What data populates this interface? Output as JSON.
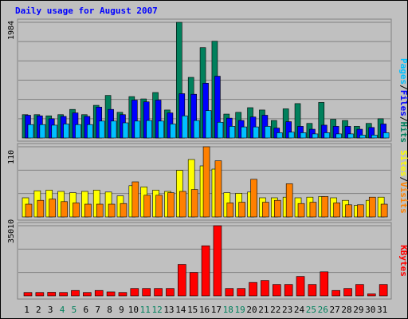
{
  "title": "Daily usage for August 2007",
  "colors": {
    "background": "#c0c0c0",
    "title": "#0000ff",
    "hits": "#00805c",
    "files": "#0000ff",
    "pages": "#00c0ff",
    "visits": "#ff8000",
    "sites": "#ffff00",
    "kbytes": "#ff0000",
    "weekend_label": "#00805c",
    "weekday_label": "#000000"
  },
  "chart_data": [
    {
      "type": "bar",
      "panel": "hits-files-pages",
      "y_max_label": "1984",
      "ylim": [
        0,
        1984
      ],
      "legend": [
        "Pages",
        "/",
        "Files",
        "/",
        "Hits"
      ],
      "categories": [
        "1",
        "2",
        "3",
        "4",
        "5",
        "6",
        "7",
        "8",
        "9",
        "10",
        "11",
        "12",
        "13",
        "14",
        "15",
        "16",
        "17",
        "18",
        "19",
        "20",
        "21",
        "22",
        "23",
        "24",
        "25",
        "26",
        "27",
        "28",
        "29",
        "30",
        "31"
      ],
      "series": [
        {
          "name": "Hits",
          "values": [
            400,
            400,
            380,
            400,
            490,
            400,
            560,
            730,
            440,
            710,
            670,
            780,
            480,
            1984,
            1040,
            1550,
            1660,
            410,
            440,
            520,
            480,
            300,
            500,
            590,
            250,
            610,
            320,
            300,
            200,
            250,
            330
          ]
        },
        {
          "name": "Files",
          "values": [
            390,
            380,
            330,
            370,
            430,
            370,
            530,
            490,
            400,
            650,
            620,
            650,
            430,
            760,
            750,
            940,
            1060,
            340,
            300,
            360,
            390,
            170,
            280,
            200,
            150,
            220,
            200,
            200,
            150,
            180,
            240
          ]
        },
        {
          "name": "Pages",
          "values": [
            230,
            230,
            220,
            240,
            230,
            230,
            290,
            290,
            260,
            290,
            300,
            290,
            240,
            380,
            300,
            470,
            270,
            200,
            190,
            190,
            200,
            90,
            100,
            90,
            70,
            90,
            70,
            70,
            50,
            50,
            90
          ]
        }
      ]
    },
    {
      "type": "bar",
      "panel": "sites-visits",
      "y_max_label": "110",
      "ylim": [
        0,
        110
      ],
      "legend": [
        "Sites",
        "/",
        "Visits"
      ],
      "categories": [
        "1",
        "2",
        "3",
        "4",
        "5",
        "6",
        "7",
        "8",
        "9",
        "10",
        "11",
        "12",
        "13",
        "14",
        "15",
        "16",
        "17",
        "18",
        "19",
        "20",
        "21",
        "22",
        "23",
        "24",
        "25",
        "26",
        "27",
        "28",
        "29",
        "30",
        "31"
      ],
      "series": [
        {
          "name": "Sites",
          "values": [
            30,
            41,
            42,
            40,
            38,
            40,
            42,
            39,
            33,
            49,
            47,
            42,
            40,
            73,
            90,
            80,
            75,
            38,
            37,
            39,
            30,
            30,
            31,
            30,
            31,
            32,
            30,
            26,
            18,
            26,
            31
          ]
        },
        {
          "name": "Visits",
          "values": [
            20,
            26,
            28,
            24,
            22,
            20,
            20,
            20,
            21,
            55,
            34,
            34,
            38,
            40,
            43,
            110,
            88,
            22,
            23,
            59,
            23,
            26,
            52,
            21,
            23,
            32,
            22,
            19,
            19,
            31,
            20
          ]
        }
      ]
    },
    {
      "type": "bar",
      "panel": "kbytes",
      "y_max_label": "35010",
      "ylim": [
        0,
        35010
      ],
      "legend": [
        "KBytes"
      ],
      "categories": [
        "1",
        "2",
        "3",
        "4",
        "5",
        "6",
        "7",
        "8",
        "9",
        "10",
        "11",
        "12",
        "13",
        "14",
        "15",
        "16",
        "17",
        "18",
        "19",
        "20",
        "21",
        "22",
        "23",
        "24",
        "25",
        "26",
        "27",
        "28",
        "29",
        "30",
        "31"
      ],
      "series": [
        {
          "name": "KBytes",
          "values": [
            1700,
            1700,
            1800,
            1700,
            2700,
            1700,
            2700,
            2000,
            1700,
            3700,
            3700,
            3700,
            3700,
            15700,
            11700,
            25000,
            35010,
            3700,
            3700,
            6700,
            7700,
            5700,
            5700,
            9700,
            5700,
            12000,
            2700,
            3700,
            5700,
            1000,
            5700
          ]
        }
      ]
    }
  ]
}
